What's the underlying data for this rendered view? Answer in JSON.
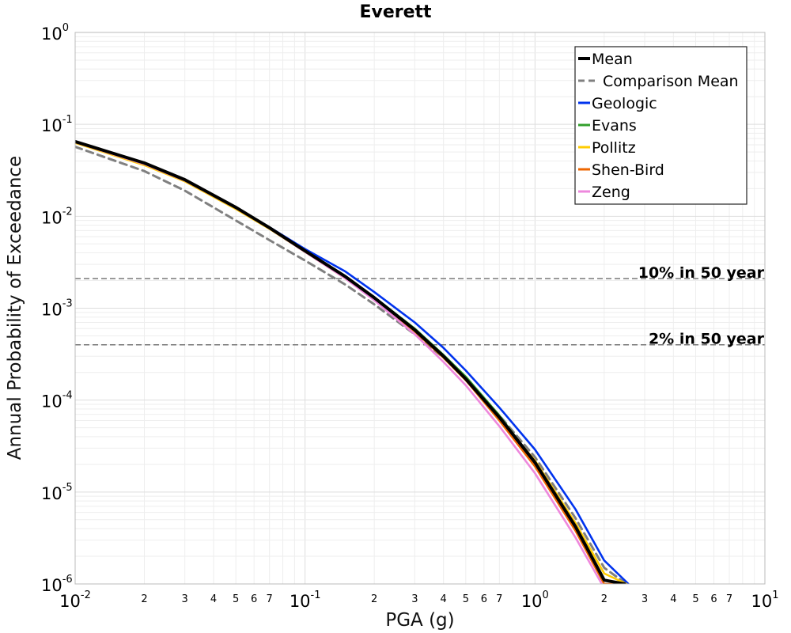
{
  "chart_data": {
    "type": "line",
    "title": "Everett",
    "xlabel": "PGA (g)",
    "ylabel": "Annual Probability of Exceedance",
    "xscale": "log",
    "yscale": "log",
    "xlim": [
      0.01,
      10
    ],
    "ylim": [
      1e-06,
      1
    ],
    "grid": true,
    "legend_position": "top-right",
    "x_major_ticks": [
      {
        "base": "10",
        "exp": "-2"
      },
      {
        "base": "10",
        "exp": "-1"
      },
      {
        "base": "10",
        "exp": "0"
      },
      {
        "base": "10",
        "exp": "1"
      }
    ],
    "y_major_ticks": [
      {
        "base": "10",
        "exp": "0"
      },
      {
        "base": "10",
        "exp": "-1"
      },
      {
        "base": "10",
        "exp": "-2"
      },
      {
        "base": "10",
        "exp": "-3"
      },
      {
        "base": "10",
        "exp": "-4"
      },
      {
        "base": "10",
        "exp": "-5"
      },
      {
        "base": "10",
        "exp": "-6"
      }
    ],
    "x_minor_tick_labels": [
      "2",
      "3",
      "4",
      "5",
      "6",
      "7"
    ],
    "reference_lines": [
      {
        "label": "10% in 50 year",
        "y": 0.0021
      },
      {
        "label": "2% in 50 year",
        "y": 0.0004
      }
    ],
    "series": [
      {
        "name": "Mean",
        "color": "#000000",
        "style": "solid",
        "x": [
          0.01,
          0.02,
          0.03,
          0.05,
          0.07,
          0.1,
          0.15,
          0.2,
          0.3,
          0.4,
          0.5,
          0.7,
          1.0,
          1.5,
          2.0,
          2.45
        ],
        "y": [
          0.065,
          0.038,
          0.025,
          0.0125,
          0.0075,
          0.0042,
          0.0022,
          0.0013,
          0.00058,
          0.0003,
          0.00017,
          6.5e-05,
          2.1e-05,
          4.2e-06,
          1.1e-06,
          1e-06
        ]
      },
      {
        "name": "Comparison Mean",
        "color": "#808080",
        "style": "dashed",
        "x": [
          0.01,
          0.02,
          0.03,
          0.05,
          0.07,
          0.1,
          0.15,
          0.2,
          0.3,
          0.4,
          0.5,
          0.7,
          1.0,
          1.5,
          2.0,
          2.5
        ],
        "y": [
          0.057,
          0.031,
          0.019,
          0.009,
          0.0055,
          0.0033,
          0.0018,
          0.0011,
          0.00052,
          0.00029,
          0.00017,
          6.8e-05,
          2.4e-05,
          5.2e-06,
          1.5e-06,
          1e-06
        ]
      },
      {
        "name": "Geologic",
        "color": "#0033ee",
        "style": "solid",
        "x": [
          0.01,
          0.02,
          0.03,
          0.05,
          0.07,
          0.1,
          0.15,
          0.2,
          0.3,
          0.4,
          0.5,
          0.7,
          1.0,
          1.5,
          2.0,
          2.55
        ],
        "y": [
          0.064,
          0.038,
          0.025,
          0.0125,
          0.0076,
          0.0044,
          0.0025,
          0.0015,
          0.0007,
          0.00037,
          0.00021,
          8.3e-05,
          2.9e-05,
          6.5e-06,
          1.8e-06,
          1e-06
        ]
      },
      {
        "name": "Evans",
        "color": "#33a02c",
        "style": "solid",
        "x": [
          0.01,
          0.02,
          0.03,
          0.05,
          0.07,
          0.1,
          0.15,
          0.2,
          0.3,
          0.4,
          0.5,
          0.7,
          1.0,
          1.5,
          2.0,
          2.4
        ],
        "y": [
          0.065,
          0.038,
          0.025,
          0.0126,
          0.0076,
          0.0042,
          0.0022,
          0.00132,
          0.0006,
          0.00031,
          0.00018,
          6.8e-05,
          2.1e-05,
          4.1e-06,
          1.1e-06,
          1e-06
        ]
      },
      {
        "name": "Pollitz",
        "color": "#ffcc00",
        "style": "solid",
        "x": [
          0.01,
          0.02,
          0.03,
          0.05,
          0.07,
          0.1,
          0.15,
          0.2,
          0.3,
          0.4,
          0.5,
          0.7,
          1.0,
          1.5,
          2.0,
          2.5
        ],
        "y": [
          0.063,
          0.036,
          0.024,
          0.012,
          0.0073,
          0.0041,
          0.0021,
          0.00125,
          0.00056,
          0.00029,
          0.000165,
          6.3e-05,
          2.2e-05,
          4.6e-06,
          1.3e-06,
          1e-06
        ]
      },
      {
        "name": "Shen-Bird",
        "color": "#ee6600",
        "style": "solid",
        "x": [
          0.01,
          0.02,
          0.03,
          0.05,
          0.07,
          0.1,
          0.15,
          0.2,
          0.3,
          0.4,
          0.5,
          0.7,
          1.0,
          1.5,
          2.0,
          2.4
        ],
        "y": [
          0.064,
          0.037,
          0.0245,
          0.0123,
          0.0074,
          0.0041,
          0.00215,
          0.00128,
          0.00056,
          0.00029,
          0.000165,
          6e-05,
          1.9e-05,
          3.8e-06,
          1e-06,
          1e-06
        ]
      },
      {
        "name": "Zeng",
        "color": "#ee88dd",
        "style": "solid",
        "x": [
          0.01,
          0.02,
          0.03,
          0.05,
          0.07,
          0.1,
          0.15,
          0.2,
          0.3,
          0.4,
          0.5,
          0.7,
          1.0,
          1.5,
          2.0,
          2.35
        ],
        "y": [
          0.064,
          0.037,
          0.0245,
          0.0123,
          0.0074,
          0.0041,
          0.0021,
          0.00122,
          0.00052,
          0.00026,
          0.000145,
          5.2e-05,
          1.6e-05,
          3.2e-06,
          9e-07,
          6e-07
        ]
      }
    ]
  }
}
